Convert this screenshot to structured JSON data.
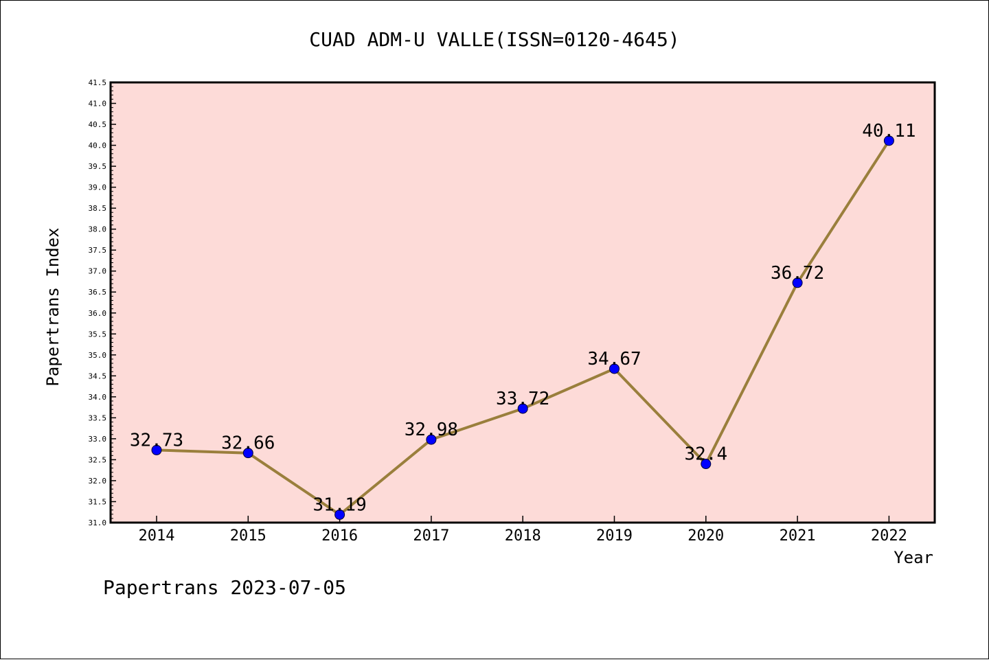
{
  "chart_data": {
    "type": "line",
    "title": "CUAD ADM-U VALLE(ISSN=0120-4645)",
    "xlabel": "Year",
    "ylabel": "Papertrans Index",
    "x": [
      "2014",
      "2015",
      "2016",
      "2017",
      "2018",
      "2019",
      "2020",
      "2021",
      "2022"
    ],
    "series": [
      {
        "values": [
          32.73,
          32.66,
          31.19,
          32.98,
          33.72,
          34.67,
          32.4,
          36.72,
          40.11
        ]
      }
    ],
    "data_labels": [
      "32.73",
      "32.66",
      "31.19",
      "32.98",
      "33.72",
      "34.67",
      "32.4",
      "36.72",
      "40.11"
    ],
    "ylim": [
      31.0,
      41.5
    ],
    "yticks": [
      "31.0",
      "31.5",
      "32.0",
      "32.5",
      "33.0",
      "33.5",
      "34.0",
      "34.5",
      "35.0",
      "35.5",
      "36.0",
      "36.5",
      "37.0",
      "37.5",
      "38.0",
      "38.5",
      "39.0",
      "39.5",
      "40.0",
      "40.5",
      "41.0",
      "41.5"
    ],
    "grid": false,
    "colors": {
      "plot_background": "#fddbd8",
      "line": "#9a7f3c",
      "marker": "#0000ff"
    }
  },
  "footer": "Papertrans 2023-07-05"
}
